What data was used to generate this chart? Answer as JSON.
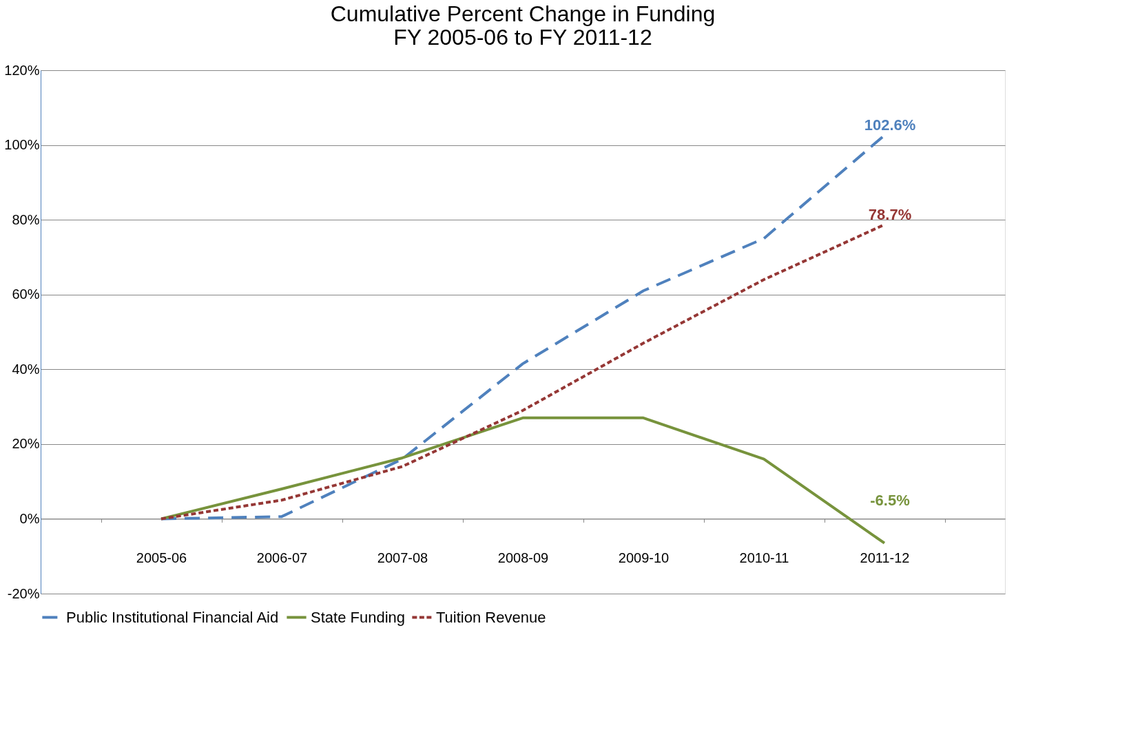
{
  "chart_data": {
    "type": "line",
    "title": [
      "Cumulative Percent Change in Funding",
      "FY 2005-06 to FY 2011-12"
    ],
    "categories": [
      "2005-06",
      "2006-07",
      "2007-08",
      "2008-09",
      "2009-10",
      "2010-11",
      "2011-12"
    ],
    "series": [
      {
        "name": "Public Institutional Financial Aid",
        "color": "#4f81bd",
        "line_style": "dashed",
        "values": [
          0,
          0.6,
          16,
          41.5,
          61,
          75,
          102.6
        ],
        "value_labels": [
          null,
          null,
          null,
          null,
          null,
          null,
          "102.6%"
        ]
      },
      {
        "name": "State Funding",
        "color": "#77933c",
        "line_style": "solid",
        "values": [
          0,
          8,
          16.3,
          27,
          27,
          16,
          -6.5
        ],
        "value_labels": [
          null,
          null,
          null,
          null,
          null,
          null,
          "-6.5%"
        ]
      },
      {
        "name": "Tuition Revenue",
        "color": "#953735",
        "line_style": "dotted",
        "values": [
          0,
          5,
          14,
          29,
          47,
          64,
          78.7
        ],
        "value_labels": [
          null,
          null,
          null,
          null,
          null,
          null,
          "78.7%"
        ]
      }
    ],
    "ylim": [
      -20,
      120
    ],
    "yticks": [
      {
        "value": -20,
        "label": "-20%"
      },
      {
        "value": 0,
        "label": "0%"
      },
      {
        "value": 20,
        "label": "20%"
      },
      {
        "value": 40,
        "label": "40%"
      },
      {
        "value": 60,
        "label": "60%"
      },
      {
        "value": 80,
        "label": "80%"
      },
      {
        "value": 100,
        "label": "100%"
      },
      {
        "value": 120,
        "label": "120%"
      }
    ],
    "grid": "y",
    "legend": "bottom",
    "marker": "none"
  }
}
